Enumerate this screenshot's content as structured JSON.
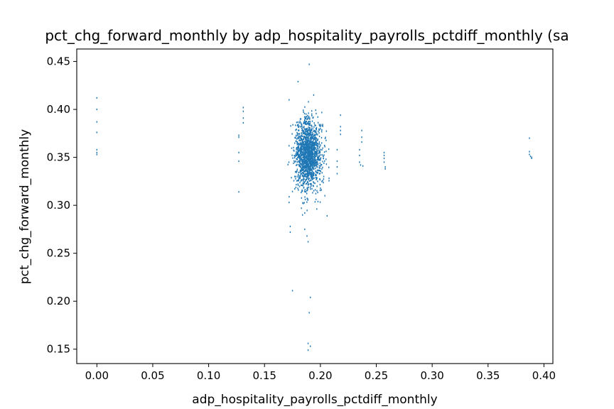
{
  "chart_data": {
    "type": "scatter",
    "title": "pct_chg_forward_monthly by adp_hospitality_payrolls_pctdiff_monthly (sa",
    "xlabel": "adp_hospitality_payrolls_pctdiff_monthly",
    "ylabel": "pct_chg_forward_monthly",
    "xlim": [
      -0.018,
      0.408
    ],
    "ylim": [
      0.135,
      0.463
    ],
    "xticks": [
      0.0,
      0.05,
      0.1,
      0.15,
      0.2,
      0.25,
      0.3,
      0.35,
      0.4
    ],
    "xtick_labels": [
      "0.00",
      "0.05",
      "0.10",
      "0.15",
      "0.20",
      "0.25",
      "0.30",
      "0.35",
      "0.40"
    ],
    "yticks": [
      0.15,
      0.2,
      0.25,
      0.3,
      0.35,
      0.4,
      0.45
    ],
    "ytick_labels": [
      "0.15",
      "0.20",
      "0.25",
      "0.30",
      "0.35",
      "0.40",
      "0.45"
    ],
    "grid": false,
    "color": "#1f77b4",
    "points_x": [
      0.0,
      0.0,
      0.0,
      0.0,
      0.0,
      0.0,
      0.0,
      0.127,
      0.127,
      0.127,
      0.127,
      0.127,
      0.131,
      0.131,
      0.131,
      0.131,
      0.172,
      0.172,
      0.173,
      0.173,
      0.175,
      0.18,
      0.183,
      0.186,
      0.188,
      0.189,
      0.189,
      0.189,
      0.19,
      0.191,
      0.19,
      0.191,
      0.182,
      0.194,
      0.218,
      0.218,
      0.218,
      0.218,
      0.215,
      0.215,
      0.215,
      0.215,
      0.235,
      0.235,
      0.235,
      0.236,
      0.237,
      0.237,
      0.237,
      0.238,
      0.257,
      0.257,
      0.257,
      0.257,
      0.258,
      0.258,
      0.387,
      0.387,
      0.387,
      0.388,
      0.389,
      0.389,
      0.206,
      0.205,
      0.204,
      0.203,
      0.186,
      0.184
    ],
    "points_y": [
      0.412,
      0.4,
      0.387,
      0.376,
      0.358,
      0.355,
      0.353,
      0.373,
      0.371,
      0.355,
      0.346,
      0.314,
      0.402,
      0.398,
      0.391,
      0.386,
      0.41,
      0.303,
      0.278,
      0.272,
      0.211,
      0.429,
      0.297,
      0.275,
      0.268,
      0.262,
      0.156,
      0.149,
      0.447,
      0.204,
      0.188,
      0.153,
      0.39,
      0.415,
      0.394,
      0.382,
      0.378,
      0.374,
      0.358,
      0.346,
      0.34,
      0.333,
      0.358,
      0.352,
      0.345,
      0.342,
      0.378,
      0.371,
      0.366,
      0.341,
      0.355,
      0.352,
      0.349,
      0.345,
      0.34,
      0.338,
      0.37,
      0.356,
      0.353,
      0.351,
      0.35,
      0.349,
      0.289,
      0.348,
      0.31,
      0.33,
      0.292,
      0.29
    ],
    "dense_cluster": {
      "count": 1500,
      "x_mean": 0.189,
      "x_sd": 0.006,
      "x_min": 0.166,
      "x_max": 0.215,
      "y_mean": 0.353,
      "y_sd": 0.018,
      "y_min": 0.285,
      "y_max": 0.42,
      "seed": 7
    }
  }
}
